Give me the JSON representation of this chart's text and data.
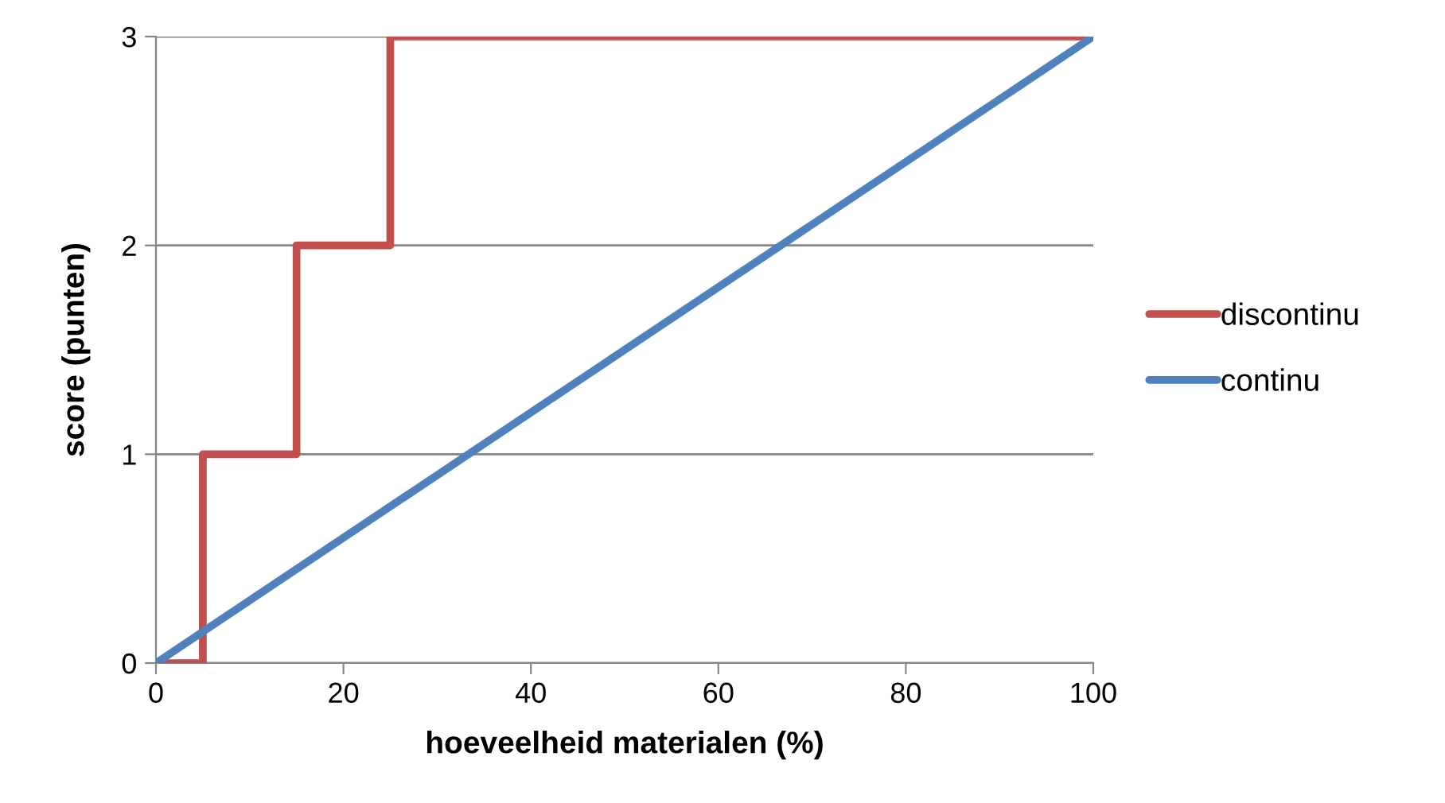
{
  "chart_data": {
    "type": "line",
    "xlabel": "hoeveelheid materialen (%)",
    "ylabel": "score (punten)",
    "xlim": [
      0,
      100
    ],
    "xticks": [
      0,
      20,
      40,
      60,
      80,
      100
    ],
    "ylim": [
      0,
      3
    ],
    "yticks": [
      0,
      1,
      2,
      3
    ],
    "grid": "y",
    "legend": "right",
    "marker": "none",
    "line_style": "solid",
    "series": [
      {
        "name": "discontinu",
        "type": "step",
        "color": "#c0504d",
        "x": [
          0,
          5,
          15,
          25,
          100
        ],
        "values": [
          0,
          1,
          2,
          3,
          3
        ]
      },
      {
        "name": "continu",
        "color": "#4f81bd",
        "x": [
          0,
          100
        ],
        "values": [
          0,
          3
        ]
      }
    ]
  }
}
